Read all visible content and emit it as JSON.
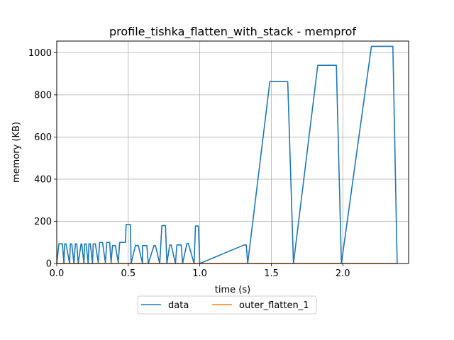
{
  "chart_data": {
    "type": "line",
    "title": "profile_tishka_flatten_with_stack - memprof",
    "xlabel": "time (s)",
    "ylabel": "memory (KB)",
    "xlim": [
      0,
      2.46
    ],
    "ylim": [
      0,
      1055
    ],
    "xticks": [
      0.0,
      0.5,
      1.0,
      1.5,
      2.0
    ],
    "xtick_labels": [
      "0.0",
      "0.5",
      "1.0",
      "1.5",
      "2.0"
    ],
    "yticks": [
      0,
      200,
      400,
      600,
      800,
      1000
    ],
    "ytick_labels": [
      "0",
      "200",
      "400",
      "600",
      "800",
      "1000"
    ],
    "grid": true,
    "legend_position": "below-center",
    "colors": {
      "data": "#1f77b4",
      "outer_flatten_1": "#ff7f0e"
    },
    "series": [
      {
        "name": "data",
        "x": [
          0.0,
          0.015,
          0.04,
          0.05,
          0.055,
          0.065,
          0.09,
          0.095,
          0.105,
          0.12,
          0.13,
          0.14,
          0.15,
          0.17,
          0.175,
          0.19,
          0.195,
          0.205,
          0.22,
          0.225,
          0.235,
          0.25,
          0.255,
          0.27,
          0.29,
          0.3,
          0.32,
          0.34,
          0.35,
          0.37,
          0.38,
          0.39,
          0.41,
          0.43,
          0.44,
          0.48,
          0.485,
          0.515,
          0.52,
          0.55,
          0.57,
          0.6,
          0.6,
          0.63,
          0.64,
          0.68,
          0.69,
          0.72,
          0.735,
          0.76,
          0.77,
          0.79,
          0.8,
          0.83,
          0.84,
          0.87,
          0.88,
          0.91,
          0.92,
          0.96,
          0.97,
          0.99,
          1.0,
          1.31,
          1.325,
          1.335,
          1.49,
          1.615,
          1.655,
          1.825,
          1.955,
          1.99,
          2.2,
          2.35,
          2.38
        ],
        "y": [
          0,
          93,
          93,
          0,
          93,
          93,
          0,
          93,
          93,
          0,
          93,
          93,
          0,
          93,
          93,
          0,
          93,
          93,
          0,
          93,
          93,
          0,
          93,
          93,
          5,
          100,
          100,
          5,
          100,
          100,
          5,
          85,
          85,
          5,
          100,
          100,
          185,
          185,
          0,
          85,
          85,
          0,
          85,
          85,
          0,
          85,
          85,
          0,
          180,
          180,
          0,
          88,
          88,
          0,
          88,
          88,
          0,
          95,
          95,
          0,
          178,
          178,
          0,
          88,
          88,
          0,
          863,
          863,
          0,
          940,
          940,
          0,
          1030,
          1030,
          0
        ]
      },
      {
        "name": "outer_flatten_1",
        "x": [
          0.0,
          2.38
        ],
        "y": [
          0,
          0
        ]
      }
    ]
  }
}
